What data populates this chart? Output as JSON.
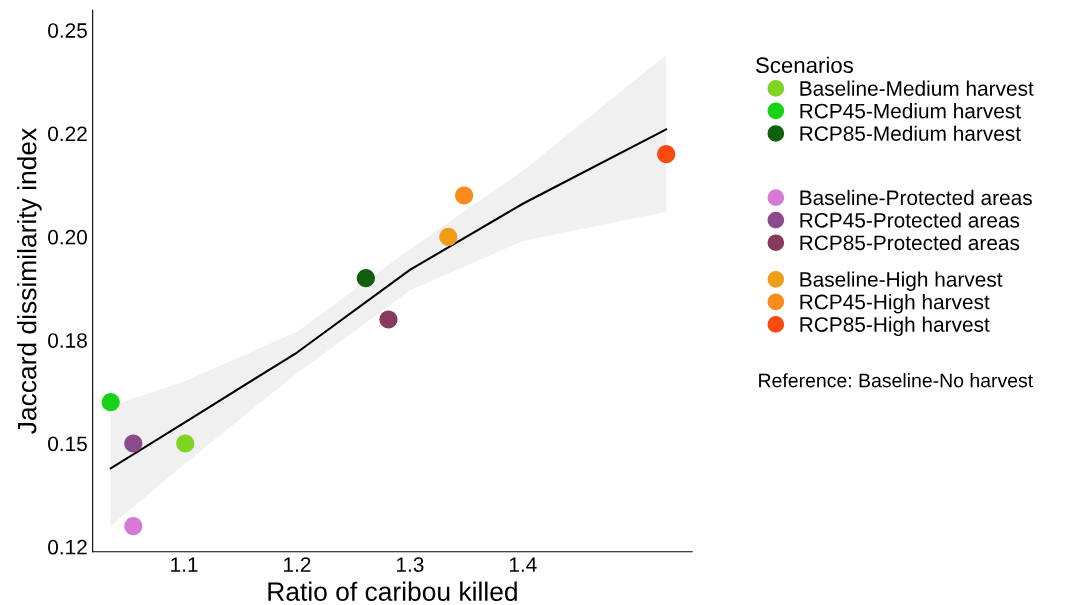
{
  "chart_data": {
    "type": "scatter",
    "xlabel": "Ratio of caribou killed",
    "ylabel": "Jaccard dissimilarity index",
    "legend_title": "Scenarios",
    "legend": "right",
    "grid": false,
    "marker": "circle",
    "xlim": [
      1.019,
      1.55
    ],
    "xticks": [
      1.1,
      1.2,
      1.3,
      1.4
    ],
    "ylim": [
      0.1238,
      0.2548
    ],
    "yticks": [
      {
        "value": 0.125,
        "label": "0.12"
      },
      0.15,
      {
        "value": 0.175,
        "label": "0.18"
      },
      {
        "value": 0.2,
        "label": "0.20"
      },
      {
        "value": 0.225,
        "label": "0.22"
      },
      0.25
    ],
    "annotations": [
      "Reference: Baseline-No harvest"
    ],
    "series": [
      {
        "type": "line",
        "marker": "none",
        "color": "#000000",
        "x": [
          1.035,
          1.1,
          1.2,
          1.3,
          1.4,
          1.527
        ],
        "values": [
          0.144,
          0.155,
          0.172,
          0.192,
          0.208,
          0.226
        ],
        "lower": [
          0.13,
          0.145,
          0.167,
          0.187,
          0.199,
          0.206
        ],
        "upper": [
          0.159,
          0.165,
          0.177,
          0.197,
          0.216,
          0.244
        ]
      },
      {
        "name": "Baseline-Medium harvest",
        "color": "#7fd321",
        "x": [
          1.101
        ],
        "values": [
          0.15
        ]
      },
      {
        "name": "RCP45-Medium harvest",
        "color": "#17d317",
        "x": [
          1.035
        ],
        "values": [
          0.16
        ]
      },
      {
        "name": "RCP85-Medium harvest",
        "color": "#0f5f0f",
        "x": [
          1.261
        ],
        "values": [
          0.19
        ]
      },
      {
        "name": "Baseline-Protected areas",
        "color": "#d779d4",
        "x": [
          1.055
        ],
        "values": [
          0.13
        ]
      },
      {
        "name": "RCP45-Protected areas",
        "color": "#8a4a8c",
        "x": [
          1.055
        ],
        "values": [
          0.15
        ]
      },
      {
        "name": "RCP85-Protected areas",
        "color": "#863a5c",
        "x": [
          1.281
        ],
        "values": [
          0.18
        ]
      },
      {
        "name": "Baseline-High harvest",
        "color": "#f09e17",
        "x": [
          1.334
        ],
        "values": [
          0.2
        ]
      },
      {
        "name": "RCP45-High harvest",
        "color": "#fc8a1d",
        "x": [
          1.348
        ],
        "values": [
          0.21
        ]
      },
      {
        "name": "RCP85-High harvest",
        "color": "#fb4a10",
        "x": [
          1.527
        ],
        "values": [
          0.22
        ]
      }
    ]
  }
}
